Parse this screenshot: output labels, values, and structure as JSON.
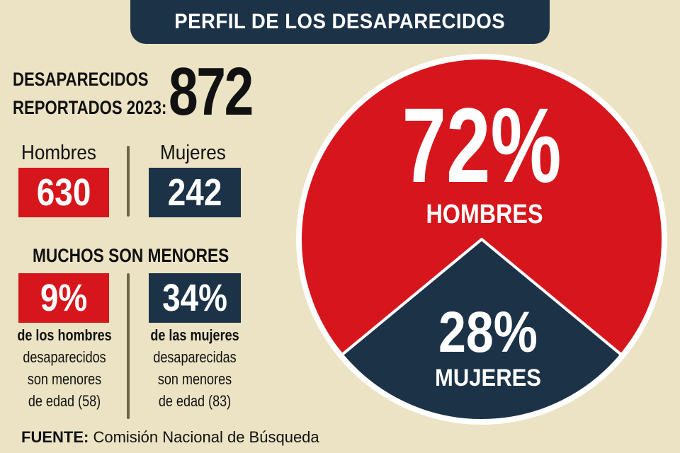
{
  "title": "PERFIL DE LOS DESAPARECIDOS",
  "total": {
    "label_line1": "DESAPARECIDOS",
    "label_line2": "REPORTADOS 2023:",
    "value": "872"
  },
  "men": {
    "label": "Hombres",
    "count": "630"
  },
  "women": {
    "label": "Mujeres",
    "count": "242"
  },
  "minors": {
    "heading": "MUCHOS SON MENORES",
    "men": {
      "percent": "9%",
      "line1": "de los hombres",
      "line2": "desaparecidos",
      "line3": "son menores",
      "line4": "de edad (58)"
    },
    "women": {
      "percent": "34%",
      "line1": "de las mujeres",
      "line2": "desaparecidas",
      "line3": "son menores",
      "line4": "de edad (83)"
    }
  },
  "source": {
    "label": "FUENTE:",
    "text": "Comisión Nacional de Búsqueda"
  },
  "colors": {
    "red": "#d6161c",
    "navy": "#1b3247",
    "background": "#ebe3c3"
  },
  "chart_data": {
    "type": "pie",
    "slices": [
      {
        "label": "HOMBRES",
        "value": 72,
        "value_label": "72%",
        "color": "#d6161c"
      },
      {
        "label": "MUJERES",
        "value": 28,
        "value_label": "28%",
        "color": "#1b3247"
      }
    ]
  }
}
